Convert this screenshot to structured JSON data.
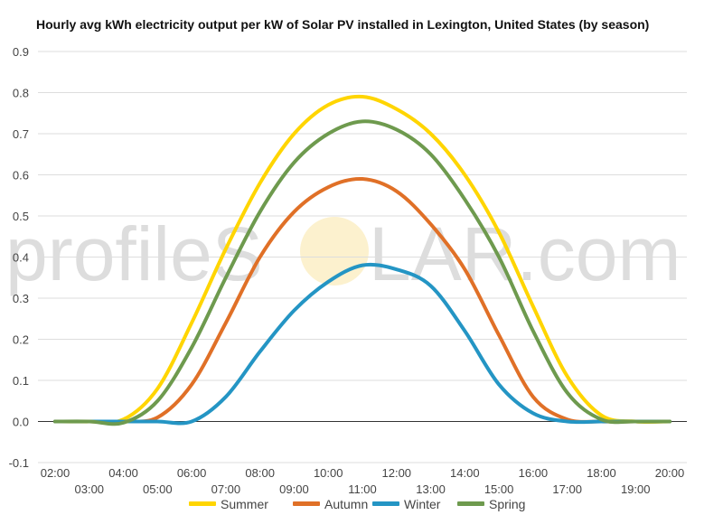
{
  "chart_data": {
    "type": "line",
    "title": "Hourly avg kWh electricity output per kW of Solar PV installed in Lexington, United States (by season)",
    "xlabel": "",
    "ylabel": "",
    "x": [
      "02:00",
      "03:00",
      "04:00",
      "05:00",
      "06:00",
      "07:00",
      "08:00",
      "09:00",
      "10:00",
      "11:00",
      "12:00",
      "13:00",
      "14:00",
      "15:00",
      "16:00",
      "17:00",
      "18:00",
      "19:00",
      "20:00"
    ],
    "ylim": [
      -0.1,
      0.9
    ],
    "yticks": [
      "-0.1",
      "0.0",
      "0.1",
      "0.2",
      "0.3",
      "0.4",
      "0.5",
      "0.6",
      "0.7",
      "0.8",
      "0.9"
    ],
    "grid": true,
    "legend_position": "bottom",
    "series": [
      {
        "name": "Summer",
        "color": "#FFD500",
        "values": [
          0.0,
          0.0,
          0.005,
          0.08,
          0.24,
          0.42,
          0.58,
          0.7,
          0.77,
          0.79,
          0.76,
          0.7,
          0.6,
          0.46,
          0.28,
          0.11,
          0.015,
          0.0,
          0.0
        ]
      },
      {
        "name": "Autumn",
        "color": "#E07027",
        "values": [
          0.0,
          0.0,
          0.0,
          0.01,
          0.09,
          0.24,
          0.4,
          0.51,
          0.57,
          0.59,
          0.56,
          0.48,
          0.37,
          0.21,
          0.06,
          0.005,
          0.0,
          0.0,
          0.0
        ]
      },
      {
        "name": "Winter",
        "color": "#2495C4",
        "values": [
          0.0,
          0.0,
          0.0,
          0.0,
          0.0,
          0.06,
          0.17,
          0.27,
          0.34,
          0.38,
          0.37,
          0.33,
          0.22,
          0.09,
          0.02,
          0.0,
          0.0,
          0.0,
          0.0
        ]
      },
      {
        "name": "Spring",
        "color": "#6E9A4E",
        "values": [
          0.0,
          0.0,
          -0.003,
          0.05,
          0.18,
          0.35,
          0.51,
          0.63,
          0.7,
          0.73,
          0.71,
          0.65,
          0.54,
          0.4,
          0.22,
          0.07,
          0.005,
          0.0,
          0.0
        ]
      }
    ]
  },
  "watermark": {
    "text_left": "profileS",
    "text_right": "LAR.com",
    "sun_color": "#FCEFC6"
  }
}
